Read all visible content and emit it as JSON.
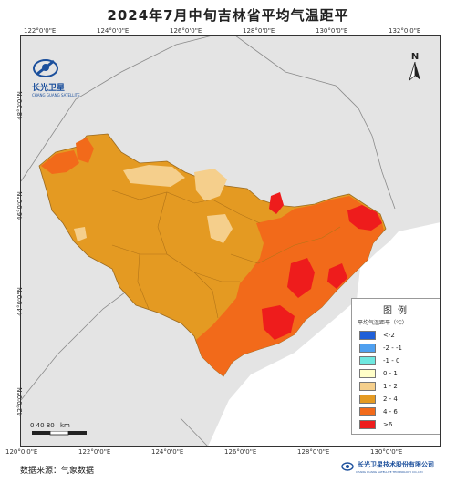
{
  "title": "2024年7月中旬吉林省平均气温距平",
  "logo": {
    "name": "长光卫星",
    "subtitle": "CHANG GUANG SATELLITE"
  },
  "north_label": "N",
  "coords": {
    "top": [
      "122°0'0\"E",
      "124°0'0\"E",
      "126°0'0\"E",
      "128°0'0\"E",
      "130°0'0\"E",
      "132°0'0\"E"
    ],
    "bottom": [
      "120°0'0\"E",
      "122°0'0\"E",
      "124°0'0\"E",
      "126°0'0\"E",
      "128°0'0\"E",
      "130°0'0\"E"
    ],
    "left": [
      "48°0'0\"N",
      "46°0'0\"N",
      "44°0'0\"N",
      "42°0'0\"N"
    ],
    "right": [
      "46°0'0\"N",
      "44°0'0\"N",
      "42°0'0\"N"
    ]
  },
  "legend": {
    "title": "图例",
    "subtitle": "平均气温距平（℃）",
    "items": [
      {
        "label": "<-2",
        "color": "#1f5fd8"
      },
      {
        "label": "-2 - -1",
        "color": "#4fa0f0"
      },
      {
        "label": "-1 - 0",
        "color": "#6fe8e0"
      },
      {
        "label": "0 - 1",
        "color": "#fffec8"
      },
      {
        "label": "1 - 2",
        "color": "#f5cf8c"
      },
      {
        "label": "2 - 4",
        "color": "#e49a22"
      },
      {
        "label": "4 - 6",
        "color": "#f26a1a"
      },
      {
        "label": ">6",
        "color": "#ee1c1c"
      }
    ]
  },
  "scale": {
    "labels": "0    40    80",
    "unit": "km"
  },
  "source": "数据来源：气象数据",
  "company": {
    "name": "长光卫星技术股份有限公司",
    "subtitle": "CHANG GUANG SATELLITE TECHNOLOGY CO.,LTD"
  },
  "colors": {
    "background_land": "#e6e6e6",
    "sea": "#ffffff",
    "border": "#7a7a7a"
  }
}
